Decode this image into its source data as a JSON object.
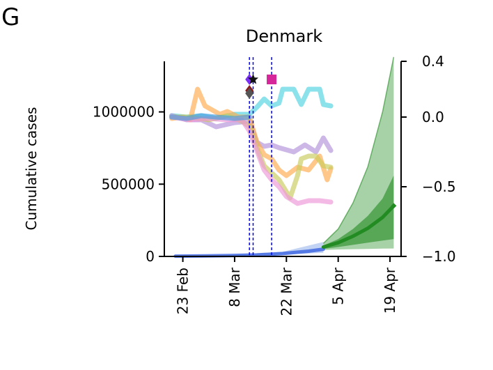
{
  "chart_data": {
    "panel_label": "G",
    "title": "Denmark",
    "type": "line",
    "ylabel": "Cumulative cases",
    "ylabel_right": "",
    "x_ticks": [
      {
        "label": "23 Feb",
        "date": "2020-02-23"
      },
      {
        "label": "8 Mar",
        "date": "2020-03-08"
      },
      {
        "label": "22 Mar",
        "date": "2020-03-22"
      },
      {
        "label": "5 Apr",
        "date": "2020-04-05"
      },
      {
        "label": "19 Apr",
        "date": "2020-04-19"
      }
    ],
    "xlim": [
      "2020-02-18",
      "2020-04-22"
    ],
    "ylim_left": [
      0,
      1350000
    ],
    "yticks_left": [
      {
        "label": "0",
        "value": 0
      },
      {
        "label": "500000",
        "value": 500000
      },
      {
        "label": "1000000",
        "value": 1000000
      }
    ],
    "ylim_right": [
      -1.0,
      0.4
    ],
    "yticks_right": [
      {
        "label": "−1.0",
        "value": -1.0
      },
      {
        "label": "−0.5",
        "value": -0.5
      },
      {
        "label": "0.0",
        "value": 0.0
      },
      {
        "label": "0.4",
        "value": 0.4
      }
    ],
    "vlines": [
      "2020-03-12",
      "2020-03-13",
      "2020-03-18"
    ],
    "markers": [
      {
        "date": "2020-03-12",
        "value": 0.27,
        "color": "#7b2ff7",
        "shape": "diamond"
      },
      {
        "date": "2020-03-13",
        "value": 0.27,
        "color": "#111111",
        "shape": "star"
      },
      {
        "date": "2020-03-18",
        "value": 0.27,
        "color": "#d6279a",
        "shape": "square"
      },
      {
        "date": "2020-03-12",
        "value": 0.19,
        "color": "#8b1a1a",
        "shape": "diamond"
      },
      {
        "date": "2020-03-12",
        "value": 0.17,
        "color": "#555555",
        "shape": "diamond"
      }
    ],
    "mobility_series": [
      {
        "color": "#4fd2e0",
        "points": [
          [
            "2020-02-20",
            0.01
          ],
          [
            "2020-02-24",
            0.0
          ],
          [
            "2020-02-28",
            0.01
          ],
          [
            "2020-03-03",
            -0.01
          ],
          [
            "2020-03-08",
            0.02
          ],
          [
            "2020-03-12",
            0.02
          ],
          [
            "2020-03-14",
            0.07
          ],
          [
            "2020-03-16",
            0.13
          ],
          [
            "2020-03-18",
            0.08
          ],
          [
            "2020-03-20",
            0.1
          ],
          [
            "2020-03-21",
            0.2
          ],
          [
            "2020-03-24",
            0.2
          ],
          [
            "2020-03-26",
            0.09
          ],
          [
            "2020-03-28",
            0.2
          ],
          [
            "2020-03-31",
            0.2
          ],
          [
            "2020-04-01",
            0.09
          ],
          [
            "2020-04-03",
            0.08
          ]
        ]
      },
      {
        "color": "#b190d8",
        "points": [
          [
            "2020-02-20",
            0.01
          ],
          [
            "2020-02-24",
            -0.02
          ],
          [
            "2020-02-28",
            -0.02
          ],
          [
            "2020-03-03",
            -0.07
          ],
          [
            "2020-03-08",
            -0.04
          ],
          [
            "2020-03-12",
            -0.03
          ],
          [
            "2020-03-14",
            -0.18
          ],
          [
            "2020-03-16",
            -0.21
          ],
          [
            "2020-03-18",
            -0.2
          ],
          [
            "2020-03-20",
            -0.22
          ],
          [
            "2020-03-24",
            -0.25
          ],
          [
            "2020-03-27",
            -0.2
          ],
          [
            "2020-03-30",
            -0.25
          ],
          [
            "2020-04-01",
            -0.15
          ],
          [
            "2020-04-03",
            -0.24
          ]
        ]
      },
      {
        "color": "#ffab4c",
        "points": [
          [
            "2020-02-20",
            -0.01
          ],
          [
            "2020-02-23",
            0.0
          ],
          [
            "2020-02-25",
            -0.02
          ],
          [
            "2020-02-27",
            0.2
          ],
          [
            "2020-02-29",
            0.08
          ],
          [
            "2020-03-02",
            0.05
          ],
          [
            "2020-03-04",
            0.02
          ],
          [
            "2020-03-06",
            0.04
          ],
          [
            "2020-03-09",
            0.0
          ],
          [
            "2020-03-12",
            0.0
          ],
          [
            "2020-03-14",
            -0.18
          ],
          [
            "2020-03-16",
            -0.27
          ],
          [
            "2020-03-18",
            -0.3
          ],
          [
            "2020-03-20",
            -0.38
          ],
          [
            "2020-03-22",
            -0.42
          ],
          [
            "2020-03-25",
            -0.36
          ],
          [
            "2020-03-28",
            -0.38
          ],
          [
            "2020-03-31",
            -0.28
          ],
          [
            "2020-04-02",
            -0.45
          ],
          [
            "2020-04-03",
            -0.37
          ]
        ]
      },
      {
        "color": "#c9cb5a",
        "points": [
          [
            "2020-02-20",
            0.0
          ],
          [
            "2020-02-25",
            0.0
          ],
          [
            "2020-03-01",
            -0.02
          ],
          [
            "2020-03-06",
            0.01
          ],
          [
            "2020-03-10",
            -0.03
          ],
          [
            "2020-03-12",
            -0.07
          ],
          [
            "2020-03-14",
            -0.22
          ],
          [
            "2020-03-16",
            -0.35
          ],
          [
            "2020-03-18",
            -0.4
          ],
          [
            "2020-03-20",
            -0.45
          ],
          [
            "2020-03-23",
            -0.58
          ],
          [
            "2020-03-25",
            -0.42
          ],
          [
            "2020-03-26",
            -0.3
          ],
          [
            "2020-03-28",
            -0.28
          ],
          [
            "2020-03-30",
            -0.28
          ],
          [
            "2020-04-01",
            -0.35
          ],
          [
            "2020-04-03",
            -0.36
          ]
        ]
      },
      {
        "color": "#ee95d8",
        "points": [
          [
            "2020-02-20",
            0.0
          ],
          [
            "2020-02-25",
            -0.02
          ],
          [
            "2020-03-01",
            -0.01
          ],
          [
            "2020-03-06",
            -0.02
          ],
          [
            "2020-03-10",
            -0.02
          ],
          [
            "2020-03-12",
            -0.1
          ],
          [
            "2020-03-14",
            -0.24
          ],
          [
            "2020-03-16",
            -0.38
          ],
          [
            "2020-03-18",
            -0.45
          ],
          [
            "2020-03-20",
            -0.5
          ],
          [
            "2020-03-22",
            -0.57
          ],
          [
            "2020-03-25",
            -0.62
          ],
          [
            "2020-03-28",
            -0.6
          ],
          [
            "2020-03-31",
            -0.6
          ],
          [
            "2020-04-03",
            -0.61
          ]
        ]
      },
      {
        "color": "#4a9be0",
        "points": [
          [
            "2020-02-20",
            0.0
          ],
          [
            "2020-02-24",
            -0.01
          ],
          [
            "2020-02-28",
            0.01
          ],
          [
            "2020-03-03",
            0.0
          ],
          [
            "2020-03-08",
            -0.01
          ],
          [
            "2020-03-12",
            0.0
          ]
        ]
      }
    ],
    "cases_observed": {
      "color": "#4169e1",
      "points": [
        [
          "2020-02-21",
          2000
        ],
        [
          "2020-02-29",
          4000
        ],
        [
          "2020-03-07",
          6000
        ],
        [
          "2020-03-14",
          10000
        ],
        [
          "2020-03-21",
          20000
        ],
        [
          "2020-03-28",
          36000
        ],
        [
          "2020-04-01",
          50000
        ]
      ]
    },
    "cases_band_observed": {
      "color": "#aac1f0",
      "upper": [
        [
          "2020-02-21",
          3000
        ],
        [
          "2020-03-07",
          8000
        ],
        [
          "2020-03-21",
          32000
        ],
        [
          "2020-04-01",
          100000
        ]
      ],
      "lower": [
        [
          "2020-02-21",
          1000
        ],
        [
          "2020-03-07",
          4000
        ],
        [
          "2020-03-21",
          12000
        ],
        [
          "2020-04-01",
          25000
        ]
      ]
    },
    "forecast": {
      "color": "#228b22",
      "median": [
        [
          "2020-04-01",
          65000
        ],
        [
          "2020-04-05",
          95000
        ],
        [
          "2020-04-09",
          140000
        ],
        [
          "2020-04-13",
          195000
        ],
        [
          "2020-04-17",
          270000
        ],
        [
          "2020-04-20",
          350000
        ]
      ],
      "inner_upper": [
        [
          "2020-04-01",
          75000
        ],
        [
          "2020-04-05",
          120000
        ],
        [
          "2020-04-09",
          190000
        ],
        [
          "2020-04-13",
          280000
        ],
        [
          "2020-04-17",
          400000
        ],
        [
          "2020-04-20",
          560000
        ]
      ],
      "inner_lower": [
        [
          "2020-04-01",
          52000
        ],
        [
          "2020-04-05",
          65000
        ],
        [
          "2020-04-09",
          80000
        ],
        [
          "2020-04-13",
          95000
        ],
        [
          "2020-04-17",
          110000
        ],
        [
          "2020-04-20",
          120000
        ]
      ],
      "outer_upper": [
        [
          "2020-04-01",
          90000
        ],
        [
          "2020-04-05",
          190000
        ],
        [
          "2020-04-09",
          370000
        ],
        [
          "2020-04-13",
          620000
        ],
        [
          "2020-04-17",
          1000000
        ],
        [
          "2020-04-20",
          1380000
        ]
      ],
      "outer_lower": [
        [
          "2020-04-01",
          45000
        ],
        [
          "2020-04-05",
          48000
        ],
        [
          "2020-04-09",
          50000
        ],
        [
          "2020-04-13",
          52000
        ],
        [
          "2020-04-17",
          54000
        ],
        [
          "2020-04-20",
          55000
        ]
      ]
    }
  }
}
